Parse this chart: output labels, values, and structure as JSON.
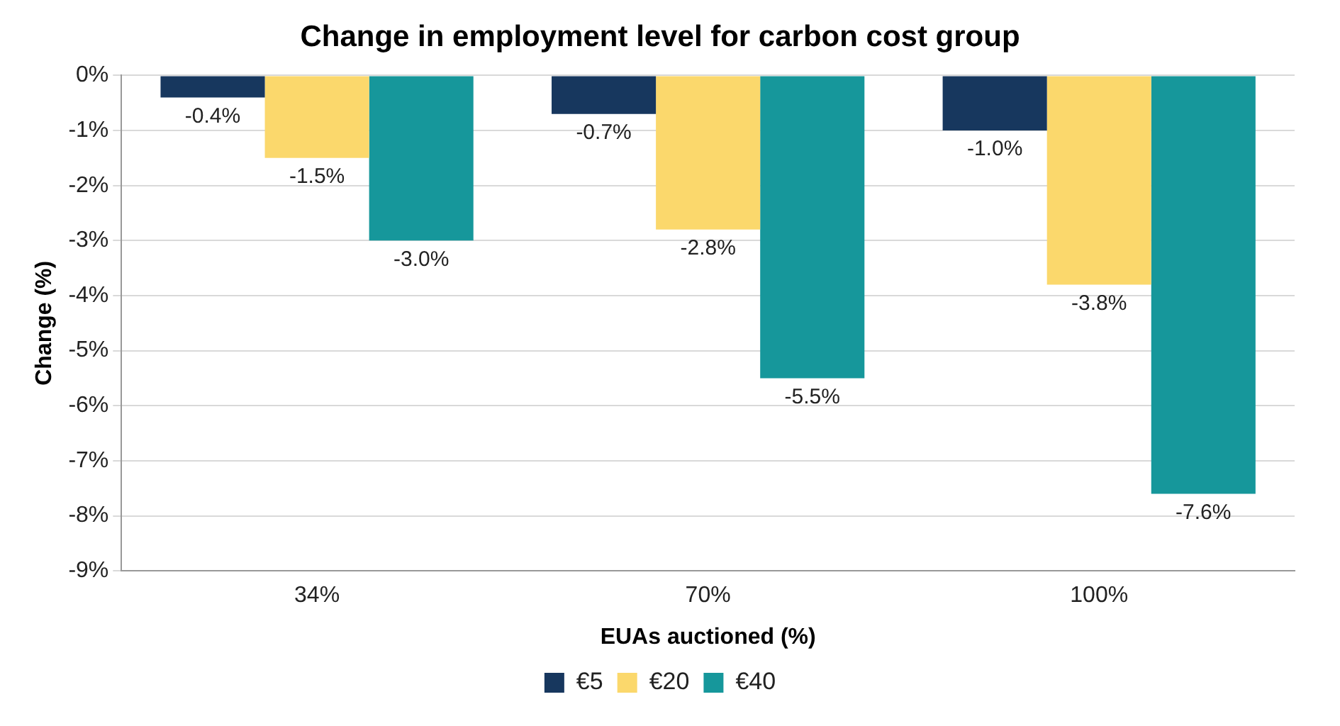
{
  "chart_data": {
    "type": "bar",
    "title": "Change in employment level for carbon cost group",
    "xlabel": "EUAs auctioned (%)",
    "ylabel": "Change (%)",
    "categories": [
      "34%",
      "70%",
      "100%"
    ],
    "series": [
      {
        "name": "€5",
        "color": "#17375e",
        "values": [
          -0.4,
          -0.7,
          -1.0
        ],
        "value_labels": [
          "-0.4%",
          "-0.7%",
          "-1.0%"
        ]
      },
      {
        "name": "€20",
        "color": "#fbd86c",
        "values": [
          -1.5,
          -2.8,
          -3.8
        ],
        "value_labels": [
          "-1.5%",
          "-2.8%",
          "-3.8%"
        ]
      },
      {
        "name": "€40",
        "color": "#16979b",
        "values": [
          -3.0,
          -5.5,
          -7.6
        ],
        "value_labels": [
          "-3.0%",
          "-5.5%",
          "-7.6%"
        ]
      }
    ],
    "ylim": [
      -9,
      0
    ],
    "yticks": [
      {
        "value": 0,
        "label": "0%"
      },
      {
        "value": -1,
        "label": "-1%"
      },
      {
        "value": -2,
        "label": "-2%"
      },
      {
        "value": -3,
        "label": "-3%"
      },
      {
        "value": -4,
        "label": "-4%"
      },
      {
        "value": -5,
        "label": "-5%"
      },
      {
        "value": -6,
        "label": "-6%"
      },
      {
        "value": -7,
        "label": "-7%"
      },
      {
        "value": -8,
        "label": "-8%"
      },
      {
        "value": -9,
        "label": "-9%"
      }
    ],
    "grid": "y",
    "legend": "bottom"
  }
}
